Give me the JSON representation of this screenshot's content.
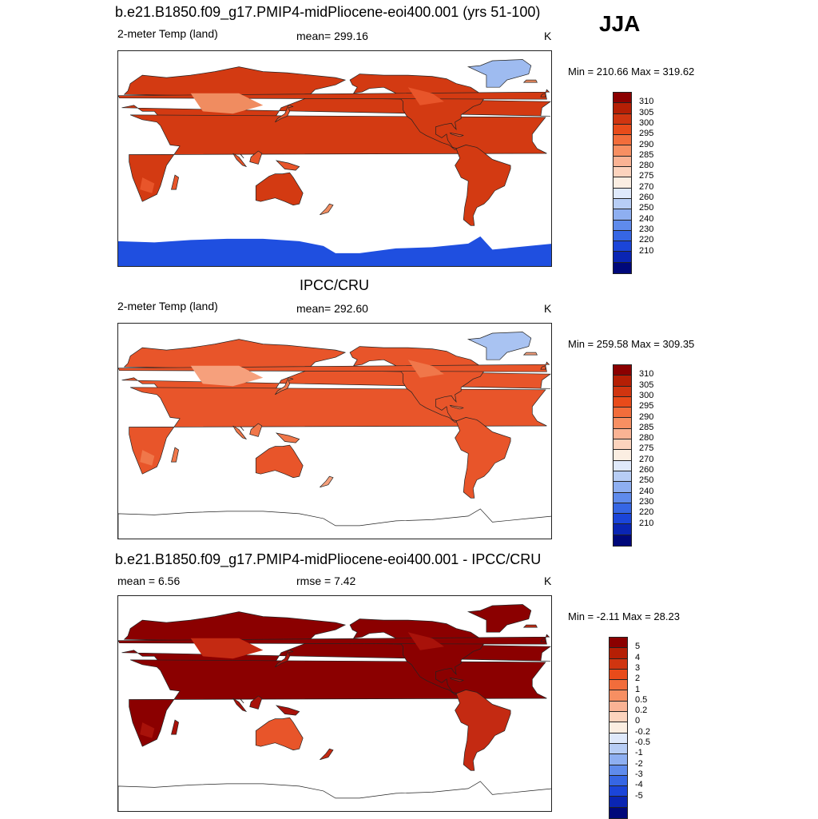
{
  "season": "JJA",
  "panels": [
    {
      "title": "b.e21.B1850.f09_g17.PMIP4-midPliocene-eoi400.001 (yrs 51-100)",
      "left_label": "2-meter Temp (land)",
      "center_label": "mean= 299.16",
      "right_label": "K",
      "minmax": "Min = 210.66 Max = 319.62",
      "colors": {
        "hot": "#a31a0b",
        "land": "#d33a12",
        "warm": "#e8552a",
        "mild": "#f08c60",
        "cool": "#f7b796",
        "ice": "#1f4fe0",
        "ice_pale": "#9ebbf0"
      },
      "legend": {
        "labels": [
          "310",
          "305",
          "300",
          "295",
          "290",
          "285",
          "280",
          "275",
          "270",
          "260",
          "250",
          "240",
          "230",
          "220",
          "210"
        ],
        "colors": [
          "#8b0000",
          "#b51f05",
          "#d03510",
          "#e84b1a",
          "#f26d3b",
          "#f78f62",
          "#fab394",
          "#fcd3bd",
          "#fbeee2",
          "#dfe9fb",
          "#b7cdf5",
          "#8eaff1",
          "#5f8bec",
          "#3666e4",
          "#1b45d9",
          "#0a25b3",
          "#00087a"
        ]
      }
    },
    {
      "title": "IPCC/CRU",
      "left_label": "2-meter Temp (land)",
      "center_label": "mean= 292.60",
      "right_label": "K",
      "minmax": "Min = 259.58 Max = 309.35",
      "colors": {
        "hot": "#c22a0c",
        "land": "#e8552a",
        "warm": "#f0774a",
        "mild": "#f6a07c",
        "cool": "#fbd0b8",
        "ice": "#a9c3f2",
        "ice_pale": "#ffffff"
      },
      "legend": {
        "labels": [
          "310",
          "305",
          "300",
          "295",
          "290",
          "285",
          "280",
          "275",
          "270",
          "260",
          "250",
          "240",
          "230",
          "220",
          "210"
        ],
        "colors": [
          "#8b0000",
          "#b51f05",
          "#d03510",
          "#e84b1a",
          "#f26d3b",
          "#f78f62",
          "#fab394",
          "#fcd3bd",
          "#fbeee2",
          "#dfe9fb",
          "#b7cdf5",
          "#8eaff1",
          "#5f8bec",
          "#3666e4",
          "#1b45d9",
          "#0a25b3",
          "#00087a"
        ]
      }
    },
    {
      "title": "b.e21.B1850.f09_g17.PMIP4-midPliocene-eoi400.001 - IPCC/CRU",
      "left_label": "mean =   6.56",
      "center_label": "rmse =   7.42",
      "right_label": "K",
      "minmax": "Min =  -2.11 Max =  28.23",
      "colors": {
        "hot": "#8b0000",
        "land": "#8b0000",
        "warm": "#a8120a",
        "mild": "#c42a12",
        "cool": "#e8552a",
        "ice": "#ffffff",
        "ice_pale": "#ffffff"
      },
      "legend": {
        "labels": [
          "5",
          "4",
          "3",
          "2",
          "1",
          "0.5",
          "0.2",
          "0",
          "-0.2",
          "-0.5",
          "-1",
          "-2",
          "-3",
          "-4",
          "-5"
        ],
        "colors": [
          "#8b0000",
          "#b51f05",
          "#d03510",
          "#e84b1a",
          "#f26d3b",
          "#f78f62",
          "#fab394",
          "#fcd3bd",
          "#fbeee2",
          "#dfe9fb",
          "#b7cdf5",
          "#8eaff1",
          "#5f8bec",
          "#3666e4",
          "#1b45d9",
          "#0a25b3",
          "#00087a"
        ]
      }
    }
  ]
}
